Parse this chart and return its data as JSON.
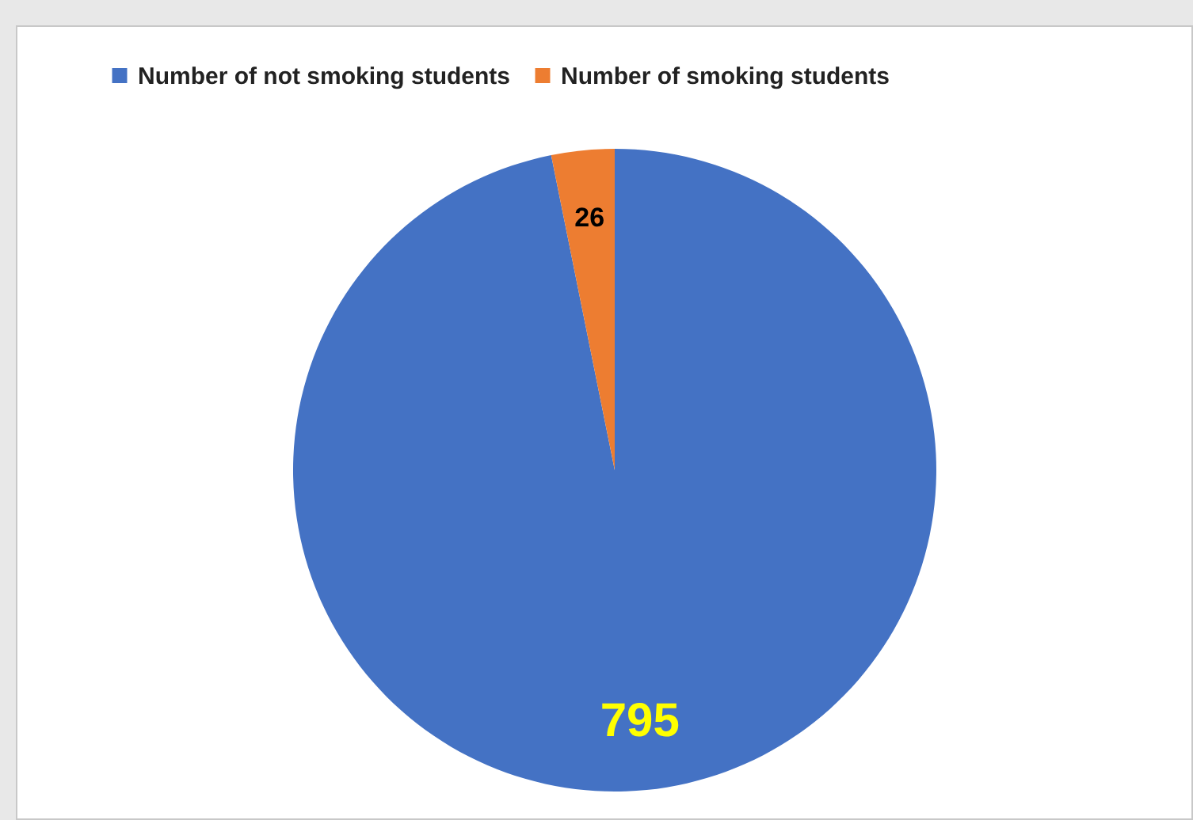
{
  "chart_data": {
    "type": "pie",
    "categories": [
      "Number of not smoking students",
      "Number of smoking students"
    ],
    "values": [
      795,
      26
    ],
    "colors": [
      "#4472c4",
      "#ed7d31"
    ],
    "data_labels": true,
    "legend": "top"
  }
}
